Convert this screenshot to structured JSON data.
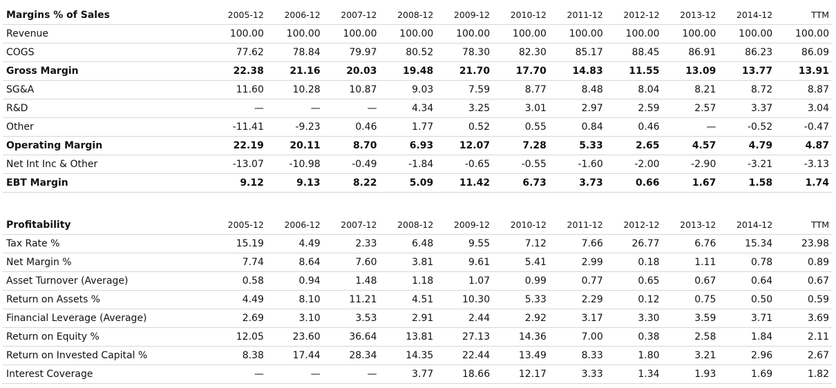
{
  "margins": {
    "title": "Margins % of Sales",
    "columns": [
      "2005-12",
      "2006-12",
      "2007-12",
      "2008-12",
      "2009-12",
      "2010-12",
      "2011-12",
      "2012-12",
      "2013-12",
      "2014-12",
      "TTM"
    ],
    "rows": [
      {
        "label": "Revenue",
        "bold": false,
        "values": [
          "100.00",
          "100.00",
          "100.00",
          "100.00",
          "100.00",
          "100.00",
          "100.00",
          "100.00",
          "100.00",
          "100.00",
          "100.00"
        ]
      },
      {
        "label": "COGS",
        "bold": false,
        "values": [
          "77.62",
          "78.84",
          "79.97",
          "80.52",
          "78.30",
          "82.30",
          "85.17",
          "88.45",
          "86.91",
          "86.23",
          "86.09"
        ]
      },
      {
        "label": "Gross Margin",
        "bold": true,
        "values": [
          "22.38",
          "21.16",
          "20.03",
          "19.48",
          "21.70",
          "17.70",
          "14.83",
          "11.55",
          "13.09",
          "13.77",
          "13.91"
        ]
      },
      {
        "label": "SG&A",
        "bold": false,
        "values": [
          "11.60",
          "10.28",
          "10.87",
          "9.03",
          "7.59",
          "8.77",
          "8.48",
          "8.04",
          "8.21",
          "8.72",
          "8.87"
        ]
      },
      {
        "label": "R&D",
        "bold": false,
        "values": [
          "—",
          "—",
          "—",
          "4.34",
          "3.25",
          "3.01",
          "2.97",
          "2.59",
          "2.57",
          "3.37",
          "3.04"
        ]
      },
      {
        "label": "Other",
        "bold": false,
        "values": [
          "-11.41",
          "-9.23",
          "0.46",
          "1.77",
          "0.52",
          "0.55",
          "0.84",
          "0.46",
          "—",
          "-0.52",
          "-0.47"
        ]
      },
      {
        "label": "Operating Margin",
        "bold": true,
        "values": [
          "22.19",
          "20.11",
          "8.70",
          "6.93",
          "12.07",
          "7.28",
          "5.33",
          "2.65",
          "4.57",
          "4.79",
          "4.87"
        ]
      },
      {
        "label": "Net Int Inc & Other",
        "bold": false,
        "values": [
          "-13.07",
          "-10.98",
          "-0.49",
          "-1.84",
          "-0.65",
          "-0.55",
          "-1.60",
          "-2.00",
          "-2.90",
          "-3.21",
          "-3.13"
        ]
      },
      {
        "label": "EBT Margin",
        "bold": true,
        "values": [
          "9.12",
          "9.13",
          "8.22",
          "5.09",
          "11.42",
          "6.73",
          "3.73",
          "0.66",
          "1.67",
          "1.58",
          "1.74"
        ]
      }
    ]
  },
  "profitability": {
    "title": "Profitability",
    "columns": [
      "2005-12",
      "2006-12",
      "2007-12",
      "2008-12",
      "2009-12",
      "2010-12",
      "2011-12",
      "2012-12",
      "2013-12",
      "2014-12",
      "TTM"
    ],
    "rows": [
      {
        "label": "Tax Rate %",
        "bold": false,
        "values": [
          "15.19",
          "4.49",
          "2.33",
          "6.48",
          "9.55",
          "7.12",
          "7.66",
          "26.77",
          "6.76",
          "15.34",
          "23.98"
        ]
      },
      {
        "label": "Net Margin %",
        "bold": false,
        "values": [
          "7.74",
          "8.64",
          "7.60",
          "3.81",
          "9.61",
          "5.41",
          "2.99",
          "0.18",
          "1.11",
          "0.78",
          "0.89"
        ]
      },
      {
        "label": "Asset Turnover (Average)",
        "bold": false,
        "values": [
          "0.58",
          "0.94",
          "1.48",
          "1.18",
          "1.07",
          "0.99",
          "0.77",
          "0.65",
          "0.67",
          "0.64",
          "0.67"
        ]
      },
      {
        "label": "Return on Assets %",
        "bold": false,
        "values": [
          "4.49",
          "8.10",
          "11.21",
          "4.51",
          "10.30",
          "5.33",
          "2.29",
          "0.12",
          "0.75",
          "0.50",
          "0.59"
        ]
      },
      {
        "label": "Financial Leverage (Average)",
        "bold": false,
        "values": [
          "2.69",
          "3.10",
          "3.53",
          "2.91",
          "2.44",
          "2.92",
          "3.17",
          "3.30",
          "3.59",
          "3.71",
          "3.69"
        ]
      },
      {
        "label": "Return on Equity %",
        "bold": false,
        "values": [
          "12.05",
          "23.60",
          "36.64",
          "13.81",
          "27.13",
          "14.36",
          "7.00",
          "0.38",
          "2.58",
          "1.84",
          "2.11"
        ]
      },
      {
        "label": "Return on Invested Capital %",
        "bold": false,
        "values": [
          "8.38",
          "17.44",
          "28.34",
          "14.35",
          "22.44",
          "13.49",
          "8.33",
          "1.80",
          "3.21",
          "2.96",
          "2.67"
        ]
      },
      {
        "label": "Interest Coverage",
        "bold": false,
        "values": [
          "—",
          "—",
          "—",
          "3.77",
          "18.66",
          "12.17",
          "3.33",
          "1.34",
          "1.93",
          "1.69",
          "1.82"
        ]
      }
    ]
  }
}
